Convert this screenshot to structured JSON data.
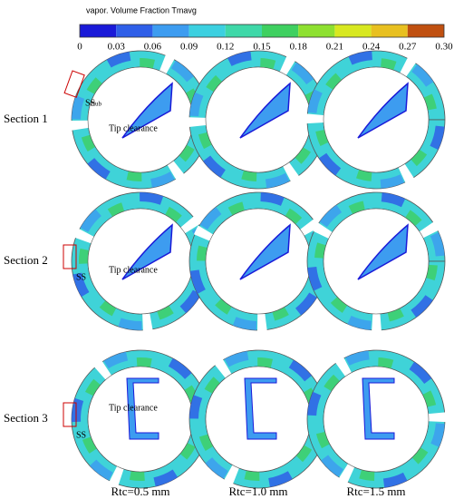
{
  "colorbar": {
    "title": "vapor. Volume Fraction Tmavg",
    "ticks": [
      "0",
      "0.03",
      "0.06",
      "0.09",
      "0.12",
      "0.15",
      "0.18",
      "0.21",
      "0.24",
      "0.27",
      "0.30"
    ]
  },
  "rows": [
    {
      "label": "Section 1",
      "annotations": [
        "SS",
        "Hub",
        "Tip clearance"
      ]
    },
    {
      "label": "Section 2",
      "annotations": [
        "SS",
        "Tip clearance"
      ]
    },
    {
      "label": "Section 3",
      "annotations": [
        "SS",
        "Tip clearance"
      ]
    }
  ],
  "columns": [
    "Rtc=0.5 mm",
    "Rtc=1.0 mm",
    "Rtc=1.5 mm"
  ]
}
